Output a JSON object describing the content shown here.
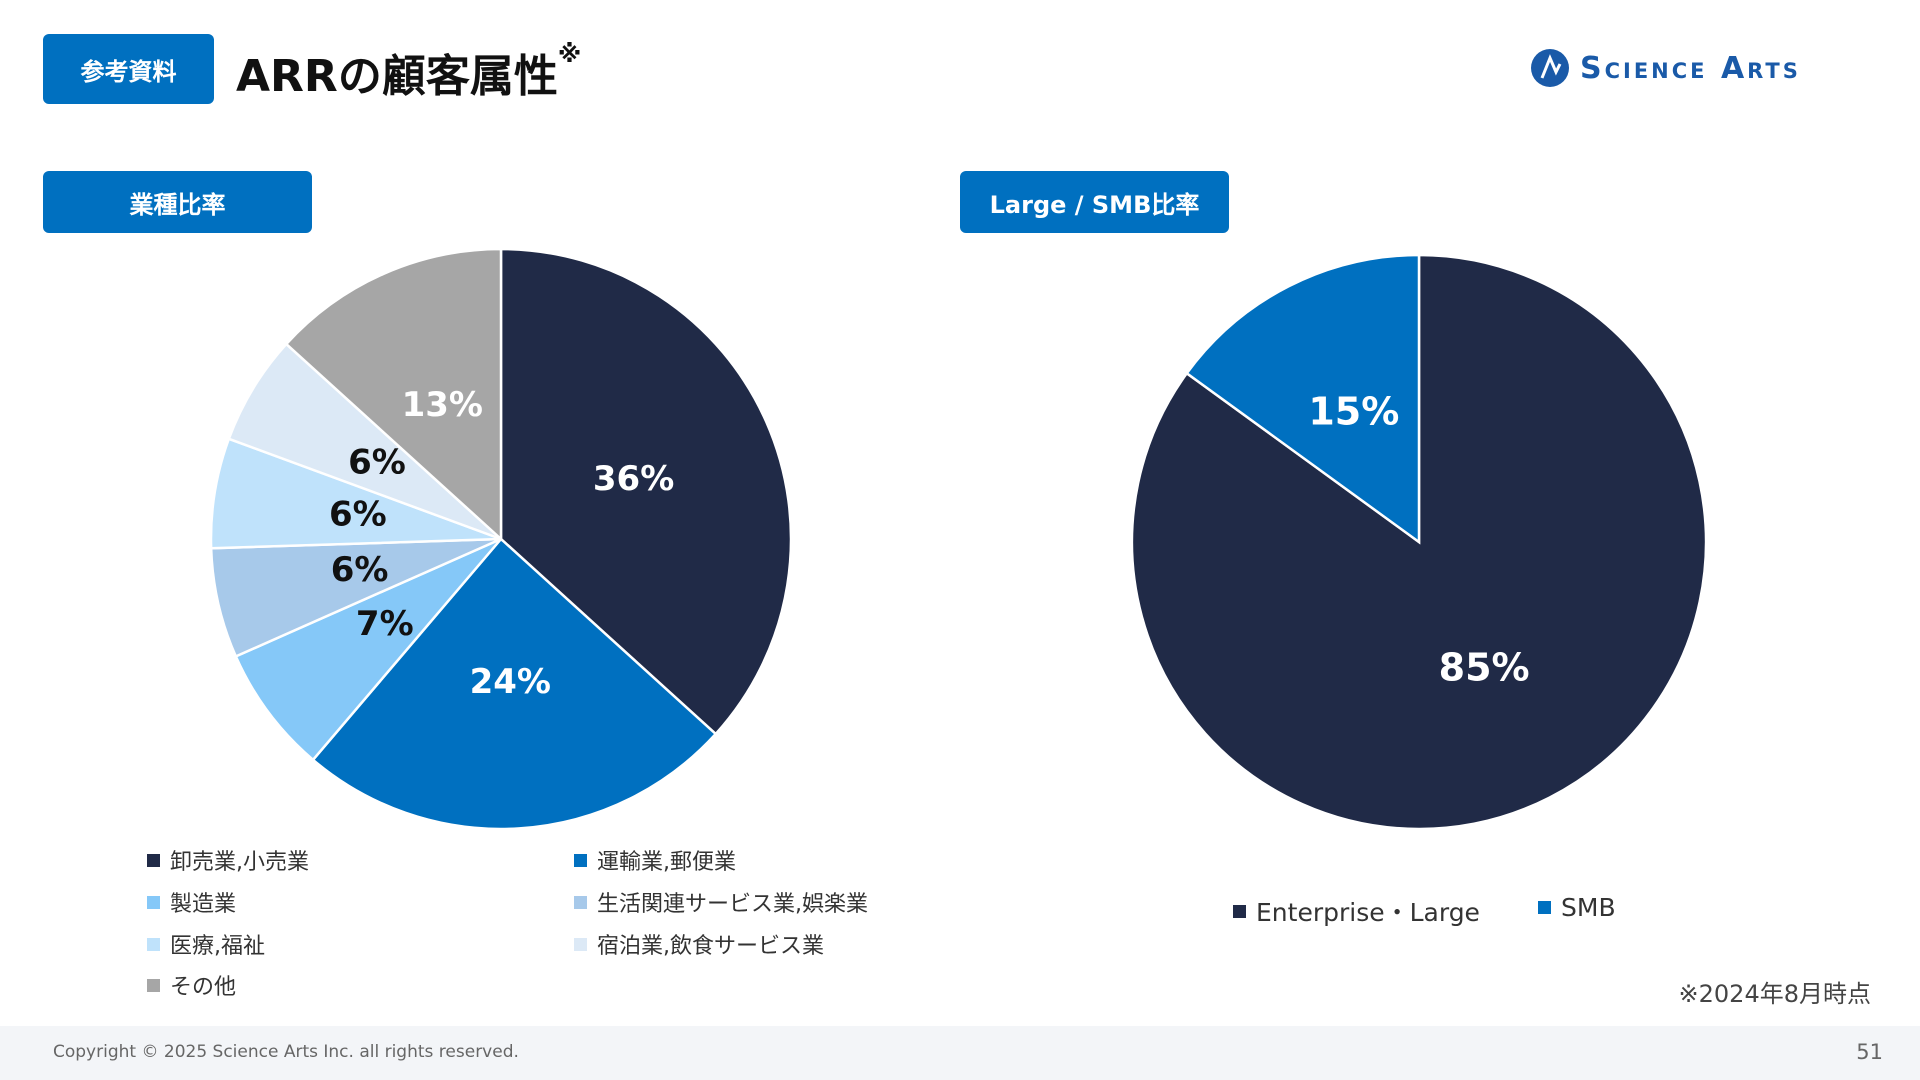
{
  "header": {
    "badge": "参考資料",
    "title": "ARRの顧客属性",
    "title_mark": "※",
    "logo_text": "Science Arts"
  },
  "chart_data": [
    {
      "type": "pie",
      "title": "業種比率",
      "start": "top",
      "direction": "clockwise",
      "slices": [
        {
          "label": "卸売業,小売業",
          "value": 36,
          "text": "36%",
          "color": "#202a47",
          "text_color": "#ffffff"
        },
        {
          "label": "運輸業,郵便業",
          "value": 24,
          "text": "24%",
          "color": "#0070c0",
          "text_color": "#ffffff"
        },
        {
          "label": "製造業",
          "value": 7,
          "text": "7%",
          "color": "#85c8f8",
          "text_color": "#111111"
        },
        {
          "label": "生活関連サービス業,娯楽業",
          "value": 6,
          "text": "6%",
          "color": "#a7c9ea",
          "text_color": "#111111"
        },
        {
          "label": "医療,福祉",
          "value": 6,
          "text": "6%",
          "color": "#bfe2fb",
          "text_color": "#111111"
        },
        {
          "label": "宿泊業,飲食サービス業",
          "value": 6,
          "text": "6%",
          "color": "#dce9f6",
          "text_color": "#111111"
        },
        {
          "label": "その他",
          "value": 13,
          "text": "13%",
          "color": "#a6a6a6",
          "text_color": "#ffffff"
        }
      ]
    },
    {
      "type": "pie",
      "title": "Large / SMB比率",
      "start": "top",
      "direction": "clockwise",
      "slices": [
        {
          "label": "Enterprise・Large",
          "value": 85,
          "text": "85%",
          "color": "#202a47",
          "text_color": "#ffffff"
        },
        {
          "label": "SMB",
          "value": 15,
          "text": "15%",
          "color": "#0070c0",
          "text_color": "#ffffff"
        }
      ]
    }
  ],
  "note": "※2024年8月時点",
  "footer": {
    "copyright": "Copyright © 2025 Science Arts Inc. all rights reserved.",
    "page": "51"
  }
}
